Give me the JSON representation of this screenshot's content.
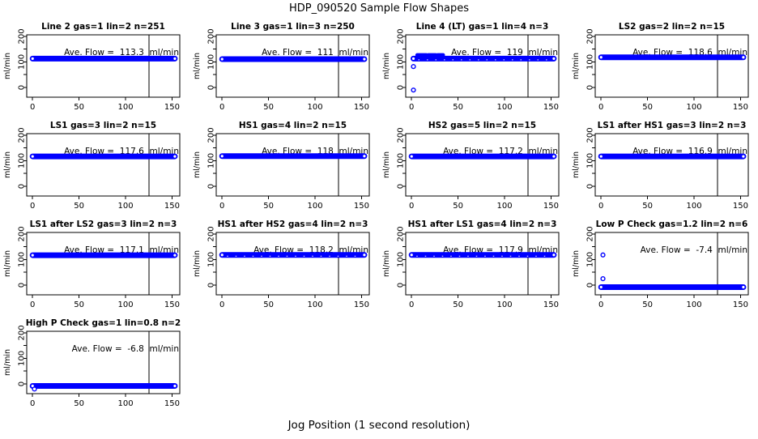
{
  "chart_data": {
    "type": "scatter",
    "title": "HDP_090520  Sample Flow Shapes",
    "xlabel": "Jog Position (1 second resolution)",
    "ylabel": "ml/min",
    "layout": {
      "columns": 4,
      "xlim": [
        -6.3,
        158.3
      ],
      "ylim": [
        -38,
        206
      ],
      "xticks": [
        0,
        50,
        100,
        150
      ],
      "yticks": [
        0,
        50,
        100,
        150,
        200
      ],
      "ytick_labeled": [
        0,
        100,
        200
      ],
      "grid": false,
      "vline_x": 125
    },
    "point_color": "#0000FF",
    "vline_color": "#000000",
    "ave_prefix": "Ave. Flow = ",
    "ave_unit": "ml/min",
    "subplots": [
      {
        "title": "Line 2 gas=1 lin=2 n=251",
        "ave_flow": "113.3",
        "band": {
          "x1": 0,
          "x2": 153,
          "y": 113
        }
      },
      {
        "title": "Line 3 gas=1 lin=3 n=250",
        "ave_flow": "111",
        "band": {
          "x1": 0,
          "x2": 153,
          "y": 111
        }
      },
      {
        "title": "Line 4 (LT) gas=1 lin=4 n=3",
        "ave_flow": "119",
        "band": {
          "x1": 2,
          "x2": 153,
          "y": 113
        },
        "speckled": true,
        "segments": [
          {
            "x1": 6,
            "x2": 16,
            "y": 127
          },
          {
            "x1": 18,
            "x2": 26,
            "y": 127
          },
          {
            "x1": 28,
            "x2": 34,
            "y": 127
          }
        ],
        "outliers": [
          {
            "x": 2,
            "y": -10
          },
          {
            "x": 2,
            "y": 82
          }
        ]
      },
      {
        "title": "LS2 gas=2 lin=2 n=15",
        "ave_flow": "118.6",
        "band": {
          "x1": 0,
          "x2": 153,
          "y": 118
        }
      },
      {
        "title": "LS1 gas=3 lin=2 n=15",
        "ave_flow": "117.6",
        "band": {
          "x1": 0,
          "x2": 153,
          "y": 117
        }
      },
      {
        "title": "HS1 gas=4 lin=2 n=15",
        "ave_flow": "118",
        "band": {
          "x1": 0,
          "x2": 153,
          "y": 118
        }
      },
      {
        "title": "HS2 gas=5 lin=2 n=15",
        "ave_flow": "117.2",
        "band": {
          "x1": 0,
          "x2": 153,
          "y": 117
        }
      },
      {
        "title": "LS1 after HS1 gas=3 lin=2 n=3",
        "ave_flow": "116.9",
        "band": {
          "x1": 0,
          "x2": 153,
          "y": 117
        }
      },
      {
        "title": "LS1 after LS2 gas=3 lin=2 n=3",
        "ave_flow": "117.1",
        "band": {
          "x1": 0,
          "x2": 153,
          "y": 117
        }
      },
      {
        "title": "HS1 after HS2 gas=4 lin=2 n=3",
        "ave_flow": "118.2",
        "band": {
          "x1": 0,
          "x2": 153,
          "y": 118
        },
        "speckled": true
      },
      {
        "title": "HS1 after LS1 gas=4 lin=2 n=3",
        "ave_flow": "117.9",
        "band": {
          "x1": 0,
          "x2": 153,
          "y": 118
        },
        "speckled": true
      },
      {
        "title": "Low P Check gas=1.2 lin=2 n=6",
        "ave_flow": "-7.4",
        "band": {
          "x1": 0,
          "x2": 153,
          "y": -8
        },
        "outliers": [
          {
            "x": 2,
            "y": 118
          },
          {
            "x": 2,
            "y": 25
          }
        ]
      },
      {
        "title": "High P Check gas=1 lin=0.8 n=2",
        "ave_flow": "-6.8",
        "band": {
          "x1": 0,
          "x2": 153,
          "y": -8
        },
        "outliers": [
          {
            "x": 2,
            "y": -20
          }
        ]
      }
    ]
  }
}
